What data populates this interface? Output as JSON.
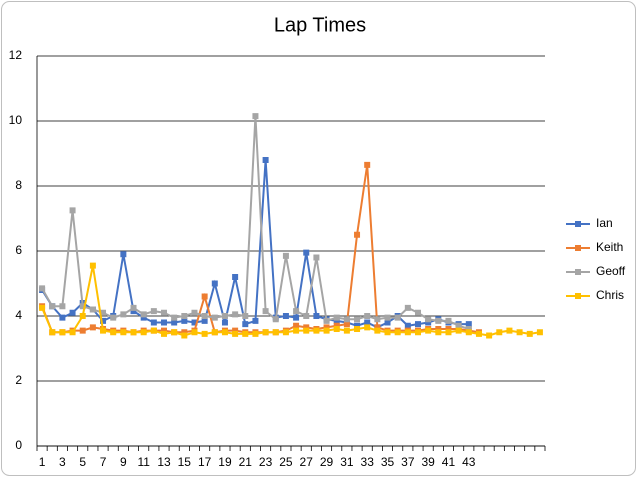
{
  "chart_data": {
    "type": "line",
    "title": "Lap Times",
    "categories": [
      1,
      null,
      3,
      null,
      5,
      null,
      7,
      null,
      9,
      null,
      11,
      null,
      13,
      null,
      15,
      null,
      17,
      null,
      19,
      null,
      21,
      null,
      23,
      null,
      25,
      null,
      27,
      null,
      29,
      null,
      31,
      null,
      33,
      null,
      35,
      null,
      37,
      null,
      39,
      null,
      41,
      null,
      43,
      null,
      null,
      null,
      null,
      null,
      null,
      null
    ],
    "ylim": [
      0,
      12
    ],
    "yticks": [
      0,
      2,
      4,
      6,
      8,
      10,
      12
    ],
    "grid": true,
    "legend": "right",
    "series": [
      {
        "name": "Ian",
        "color": "#4472c4",
        "values": [
          4.8,
          4.3,
          3.95,
          4.1,
          4.4,
          4.2,
          3.85,
          4.0,
          5.9,
          4.15,
          3.95,
          3.8,
          3.8,
          3.8,
          3.85,
          3.8,
          3.85,
          5.0,
          3.8,
          5.2,
          3.75,
          3.85,
          8.8,
          3.95,
          4.0,
          3.95,
          5.95,
          4.0,
          3.9,
          3.85,
          3.8,
          3.7,
          3.8,
          3.65,
          3.8,
          4.0,
          3.7,
          3.75,
          3.8,
          3.9,
          3.8,
          3.75,
          3.75,
          null,
          null,
          null,
          null,
          null,
          null,
          null
        ]
      },
      {
        "name": "Keith",
        "color": "#ed7d31",
        "values": [
          4.3,
          3.5,
          3.5,
          3.55,
          3.55,
          3.65,
          3.6,
          3.55,
          3.55,
          3.5,
          3.55,
          3.55,
          3.55,
          3.5,
          3.5,
          3.55,
          4.6,
          3.5,
          3.55,
          3.55,
          3.5,
          3.5,
          3.5,
          3.5,
          3.55,
          3.7,
          3.65,
          3.6,
          3.65,
          3.7,
          3.75,
          6.5,
          8.65,
          3.65,
          3.55,
          3.55,
          3.55,
          3.55,
          3.6,
          3.6,
          3.6,
          3.6,
          3.55,
          3.5,
          null,
          null,
          null,
          null,
          null,
          null
        ]
      },
      {
        "name": "Geoff",
        "color": "#a5a5a5",
        "values": [
          4.85,
          4.3,
          4.3,
          7.25,
          4.3,
          4.2,
          4.1,
          3.95,
          4.05,
          4.25,
          4.05,
          4.15,
          4.1,
          3.95,
          4.0,
          4.1,
          4.0,
          3.95,
          4.0,
          4.05,
          4.0,
          10.15,
          4.15,
          3.9,
          5.85,
          4.15,
          4.0,
          5.8,
          3.85,
          3.95,
          3.9,
          3.9,
          4.0,
          3.9,
          3.95,
          3.95,
          4.25,
          4.1,
          3.9,
          3.85,
          3.85,
          3.7,
          3.6,
          null,
          null,
          null,
          null,
          null,
          null,
          null
        ]
      },
      {
        "name": "Chris",
        "color": "#ffc000",
        "values": [
          4.25,
          3.5,
          3.5,
          3.5,
          4.0,
          5.55,
          3.55,
          3.5,
          3.5,
          3.5,
          3.5,
          3.55,
          3.45,
          3.5,
          3.4,
          3.5,
          3.45,
          3.5,
          3.5,
          3.45,
          3.45,
          3.45,
          3.5,
          3.5,
          3.5,
          3.55,
          3.55,
          3.55,
          3.55,
          3.6,
          3.55,
          3.6,
          3.65,
          3.55,
          3.5,
          3.5,
          3.5,
          3.5,
          3.55,
          3.5,
          3.5,
          3.55,
          3.5,
          3.45,
          3.4,
          3.5,
          3.55,
          3.5,
          3.45,
          3.5
        ]
      }
    ]
  }
}
